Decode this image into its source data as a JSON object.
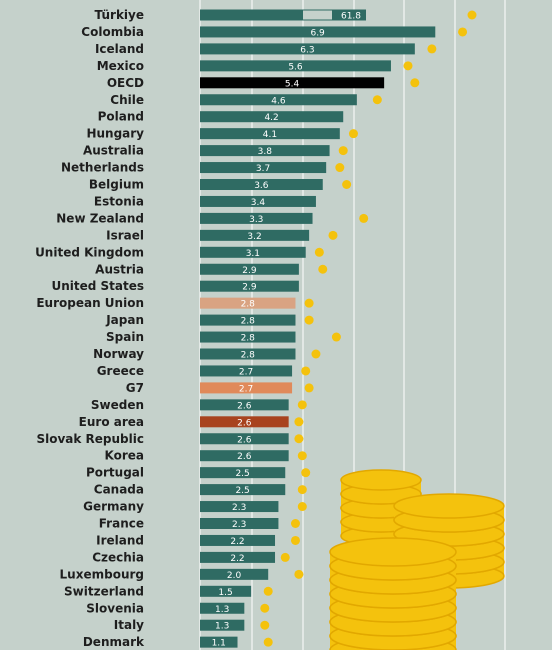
{
  "chart_data": {
    "type": "bar",
    "orientation": "horizontal",
    "categories": [
      "Türkiye",
      "Colombia",
      "Iceland",
      "Mexico",
      "OECD",
      "Chile",
      "Poland",
      "Hungary",
      "Australia",
      "Netherlands",
      "Belgium",
      "Estonia",
      "New Zealand",
      "Israel",
      "United Kingdom",
      "Austria",
      "United States",
      "European Union",
      "Japan",
      "Spain",
      "Norway",
      "Greece",
      "G7",
      "Sweden",
      "Euro area",
      "Slovak Republic",
      "Korea",
      "Portugal",
      "Canada",
      "Germany",
      "France",
      "Ireland",
      "Czechia",
      "Luxembourg",
      "Switzerland",
      "Slovenia",
      "Italy",
      "Denmark"
    ],
    "series": [
      {
        "values": [
          61.8,
          6.9,
          6.3,
          5.6,
          5.4,
          4.6,
          4.2,
          4.1,
          3.8,
          3.7,
          3.6,
          3.4,
          3.3,
          3.2,
          3.1,
          2.9,
          2.9,
          2.8,
          2.8,
          2.8,
          2.8,
          2.7,
          2.7,
          2.6,
          2.6,
          2.6,
          2.6,
          2.5,
          2.5,
          2.3,
          2.3,
          2.2,
          2.2,
          2.0,
          1.5,
          1.3,
          1.3,
          1.1
        ]
      },
      {
        "values": [
          85,
          7.7,
          6.8,
          6.1,
          6.3,
          5.2,
          null,
          4.5,
          4.2,
          4.1,
          4.3,
          null,
          4.8,
          3.9,
          3.5,
          3.6,
          null,
          3.2,
          3.2,
          4.0,
          3.4,
          3.1,
          3.2,
          3.0,
          2.9,
          2.9,
          3.0,
          3.1,
          3.0,
          3.0,
          2.8,
          2.8,
          2.5,
          2.9,
          2.0,
          1.9,
          1.9,
          2.0
        ]
      }
    ],
    "value_labels": [
      "61.8",
      "6.9",
      "6.3",
      "5.6",
      "5.4",
      "4.6",
      "4.2",
      "4.1",
      "3.8",
      "3.7",
      "3.6",
      "3.4",
      "3.3",
      "3.2",
      "3.1",
      "2.9",
      "2.9",
      "2.8",
      "2.8",
      "2.8",
      "2.8",
      "2.7",
      "2.7",
      "2.6",
      "2.6",
      "2.6",
      "2.6",
      "2.5",
      "2.5",
      "2.3",
      "2.3",
      "2.2",
      "2.2",
      "2.0",
      "1.5",
      "1.3",
      "1.3",
      "1.1"
    ],
    "highlight": {
      "OECD": "#000000",
      "European Union": "#d9a382",
      "G7": "#e08a5a",
      "Euro area": "#a8431e"
    },
    "axis_break": "Türkiye",
    "xlim": [
      0,
      7.5
    ],
    "grid": true,
    "colors": {
      "bar": "#2f6b63",
      "dot": "#f4c20d",
      "background": "#c5d1cb",
      "grid": "#ffffff",
      "break_fill": "#c5d1cb",
      "coins": "#f4c20d",
      "coin_edge": "#e2a800"
    }
  }
}
